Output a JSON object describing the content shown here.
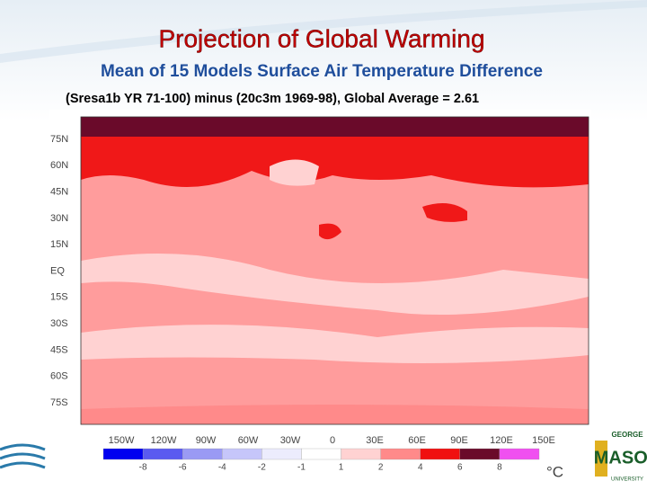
{
  "slide": {
    "title": "Projection of Global Warming",
    "subtitle": "Mean of 15 Models Surface Air Temperature Difference",
    "caption": "(Sresa1b YR 71-100) minus (20c3m 1969-98),  Global Average = 2.61",
    "map": {
      "lat_labels": [
        "75N",
        "60N",
        "45N",
        "30N",
        "15N",
        "EQ",
        "15S",
        "30S",
        "45S",
        "60S",
        "75S"
      ],
      "lon_labels": [
        "150W",
        "120W",
        "90W",
        "60W",
        "30W",
        "0",
        "30E",
        "60E",
        "90E",
        "120E",
        "150E"
      ]
    },
    "colorbar": {
      "colors": [
        "#0000f0",
        "#5a5af0",
        "#9a9af4",
        "#c6c6fa",
        "#ececfd",
        "#ffffff",
        "#ffd2d2",
        "#ff8a8a",
        "#f01010",
        "#6a0a2a",
        "#f050f0"
      ],
      "labels": [
        "-8",
        "-6",
        "-4",
        "-2",
        "-1",
        "1",
        "2",
        "4",
        "6",
        "8"
      ],
      "unit": "°C"
    },
    "logo": {
      "line1": "GEORGE",
      "line2": "MASON",
      "line3": "UNIVERSITY"
    }
  }
}
